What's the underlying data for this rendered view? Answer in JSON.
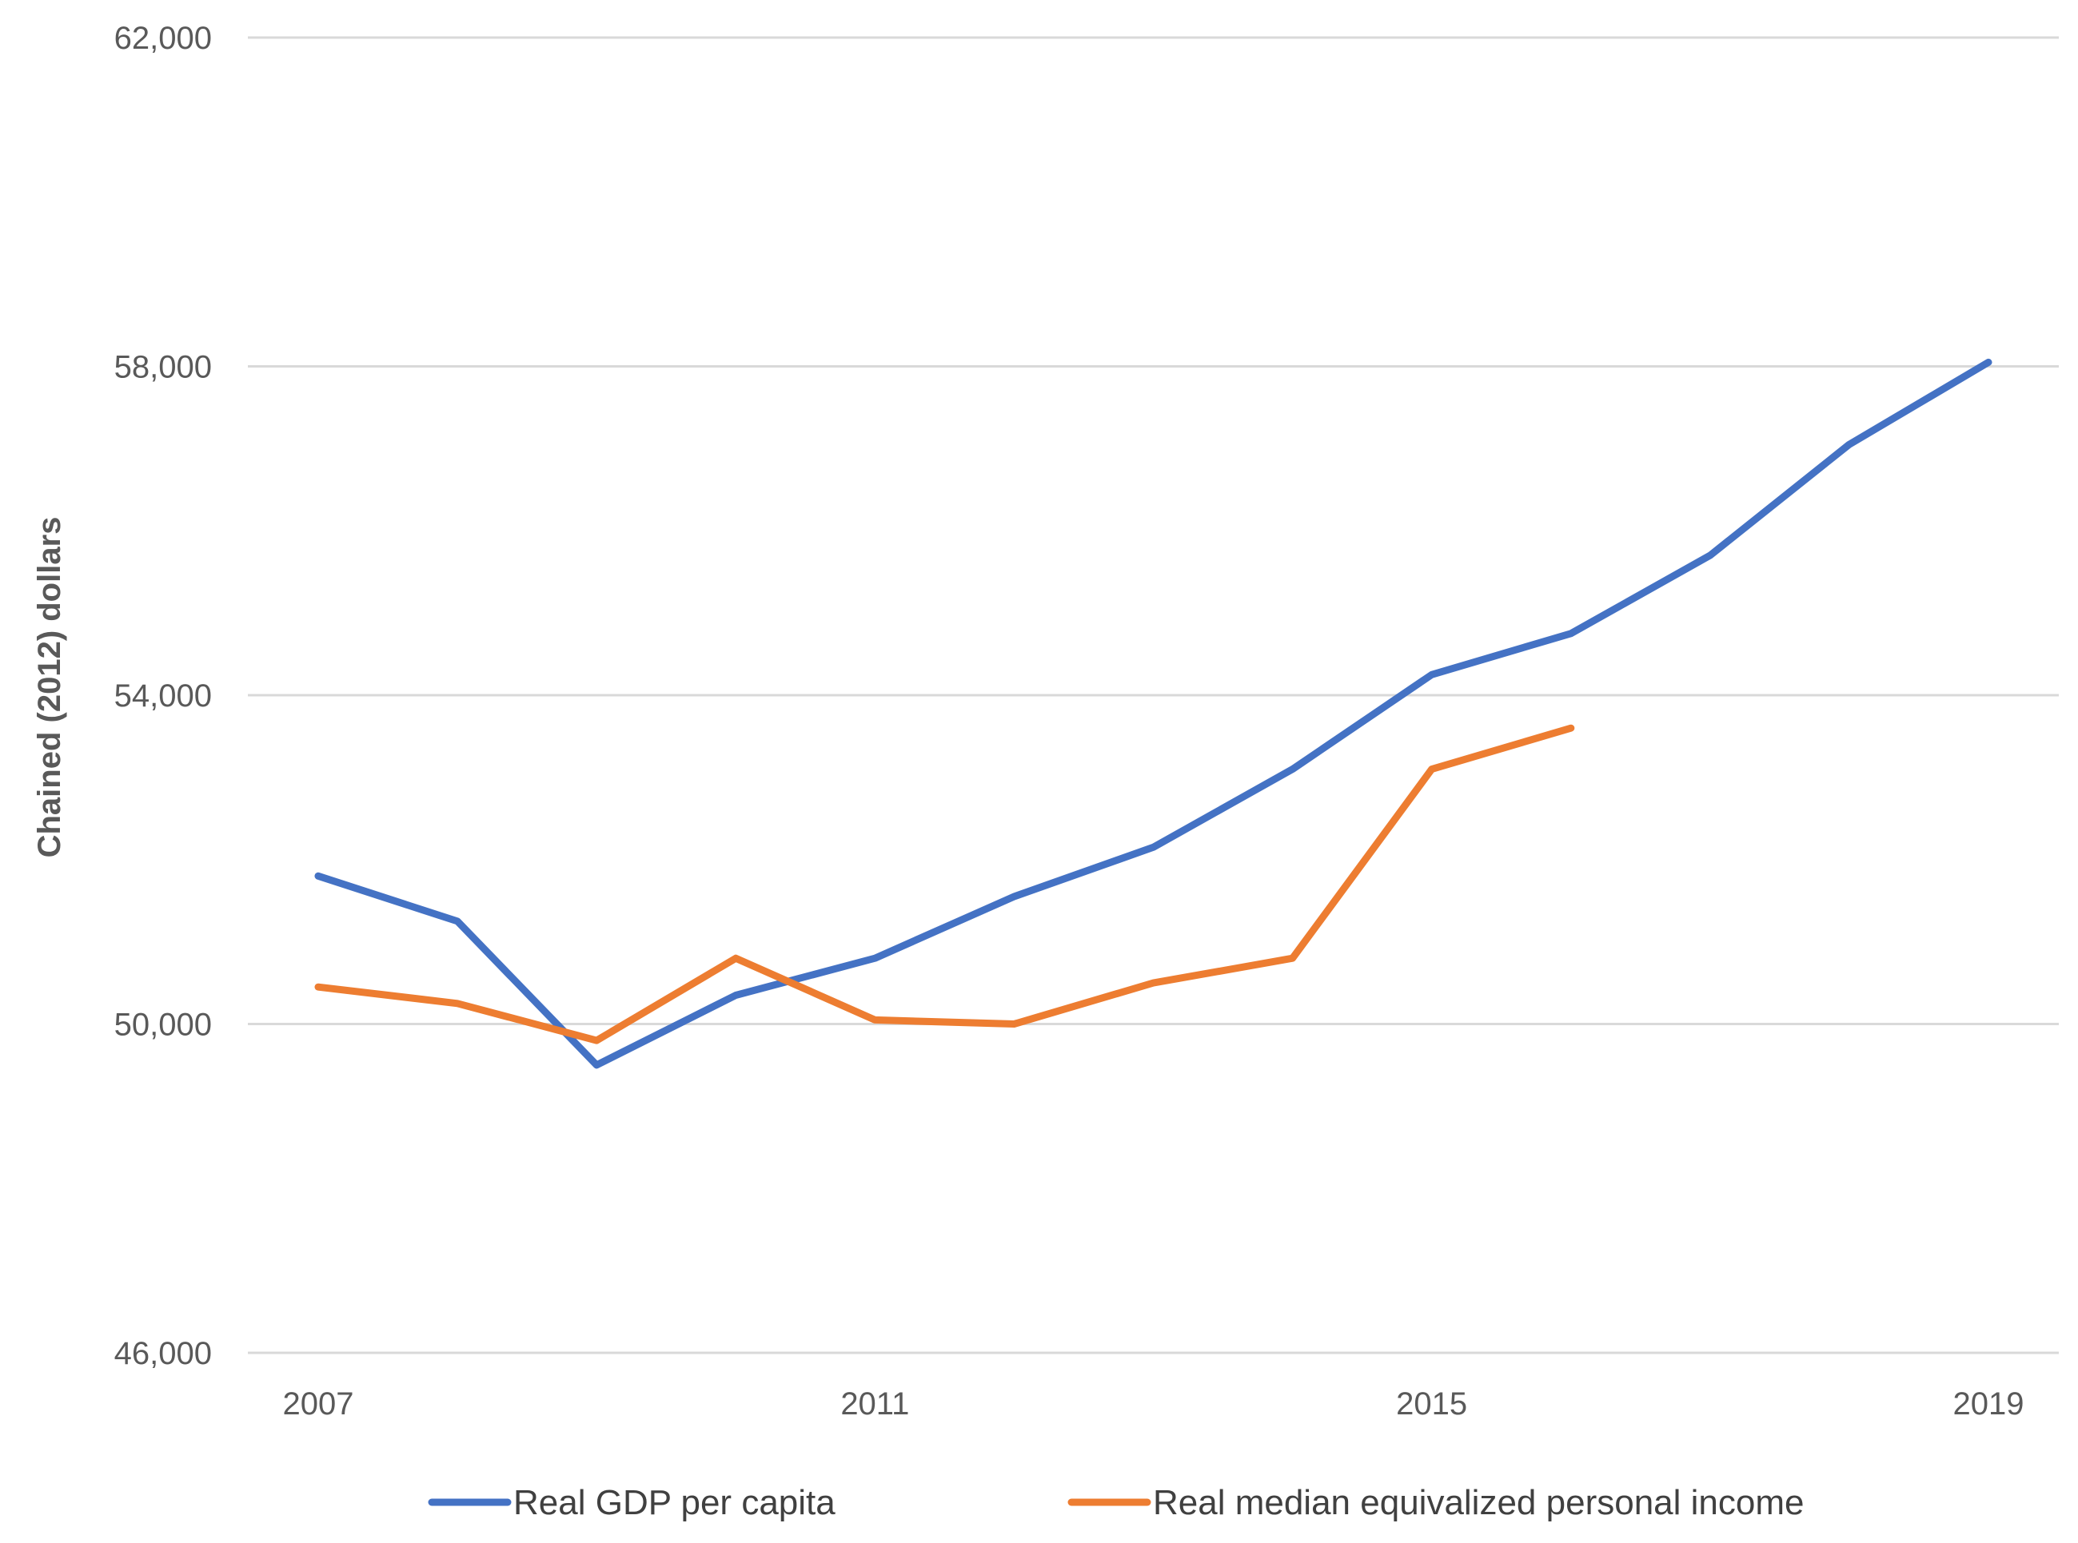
{
  "chart_data": {
    "type": "line",
    "title": "",
    "xlabel": "",
    "ylabel": "Chained (2012) dollars",
    "ylim": [
      46000,
      62000
    ],
    "yticks": [
      46000,
      50000,
      54000,
      58000,
      62000
    ],
    "ytick_labels": [
      "46,000",
      "50,000",
      "54,000",
      "58,000",
      "62,000"
    ],
    "xlim": [
      2007,
      2019
    ],
    "xticks": [
      2007,
      2011,
      2015,
      2019
    ],
    "xtick_labels": [
      "2007",
      "2011",
      "2015",
      "2019"
    ],
    "grid": "horizontal",
    "legend_position": "bottom",
    "series": [
      {
        "name": "Real GDP per capita",
        "color": "#4472C4",
        "x": [
          2007,
          2008,
          2009,
          2010,
          2011,
          2012,
          2013,
          2014,
          2015,
          2016,
          2017,
          2018,
          2019
        ],
        "y": [
          51800,
          51250,
          49500,
          50350,
          50800,
          51550,
          52150,
          53100,
          54250,
          54750,
          55700,
          57050,
          58050
        ]
      },
      {
        "name": "Real median equivalized personal income",
        "color": "#ED7D31",
        "x": [
          2007,
          2008,
          2009,
          2010,
          2011,
          2012,
          2013,
          2014,
          2015,
          2016
        ],
        "y": [
          50450,
          50250,
          49800,
          50800,
          50050,
          50000,
          50500,
          50800,
          53100,
          53600
        ]
      }
    ]
  }
}
